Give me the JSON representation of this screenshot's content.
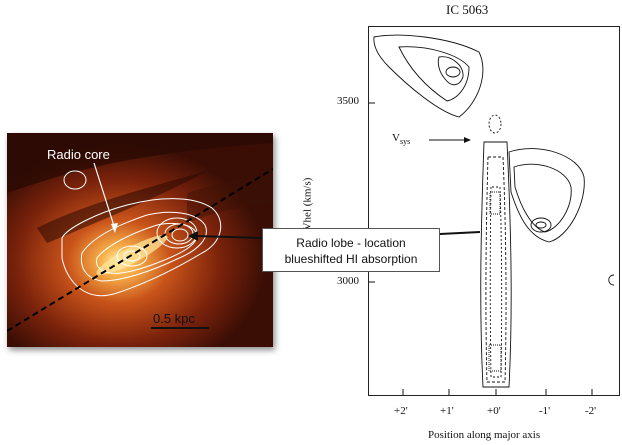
{
  "left_panel": {
    "radio_core_label": "Radio core",
    "scale_bar_label": "0.5 kpc"
  },
  "callout": {
    "line1": "Radio lobe - location",
    "line2": "blueshifted HI absorption"
  },
  "right_panel": {
    "title": "IC 5063",
    "ylabel": "Vhel (km/s)",
    "xlabel": "Position along major axis",
    "vsys_main": "V",
    "vsys_sub": "sys",
    "yticks": [
      "3500",
      "3000"
    ],
    "xticks": [
      "+2'",
      "+1'",
      "+0'",
      "-1'",
      "-2'"
    ]
  },
  "colors": {
    "galaxy_bright": "#f6c46a",
    "galaxy_dark": "#3a0e05",
    "contour": "#ffffff"
  }
}
